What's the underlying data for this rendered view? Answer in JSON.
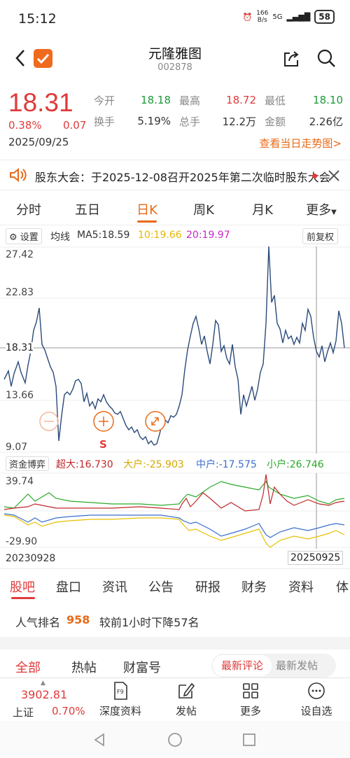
{
  "status": {
    "time": "15:12",
    "net_speed": "166",
    "net_unit": "B/s",
    "signal": "5G",
    "battery": "58"
  },
  "nav": {
    "title": "元隆雅图",
    "code": "002878"
  },
  "quote": {
    "price": "18.31",
    "pct": "0.38%",
    "change": "0.07",
    "date": "2025/09/25",
    "stats": [
      {
        "l1": "今开",
        "v1": "18.18",
        "l2": "最高",
        "v2": "18.72",
        "l3": "最低",
        "v3": "18.10"
      },
      {
        "l1": "换手",
        "v1": "5.19%",
        "l2": "总手",
        "v2": "12.2万",
        "l3": "金额",
        "v3": "2.26亿"
      }
    ],
    "trend_link": "查看当日走势图>"
  },
  "notice": {
    "text": "股东大会：于2025-12-08召开2025年第二次临时股东大会"
  },
  "period_tabs": [
    "分时",
    "五日",
    "日K",
    "周K",
    "月K",
    "更多"
  ],
  "chart_toolbar": {
    "settings": "设置",
    "ma_label": "均线",
    "ma5": "MA5:18.59",
    "ma10": "10:19.66",
    "ma20": "20:19.97",
    "restore": "前复权"
  },
  "kline": {
    "y_labels": [
      "27.42",
      "22.83",
      "18.31",
      "13.66",
      "9.07"
    ],
    "signal_label": "S",
    "colors": {
      "price": "#2b4a7a",
      "up": "#e03a3a",
      "accent": "#e86a18"
    }
  },
  "fund_flow": {
    "button": "资金博弈",
    "super_large": "超大:16.730",
    "large": "大户:-25.903",
    "medium": "中户:-17.575",
    "small": "小户:26.746",
    "y_top": "39.74",
    "y_bottom": "-29.90",
    "colors": {
      "super_large": "#c0282a",
      "large": "#e6c000",
      "medium": "#3a6ecc",
      "small": "#2aaa2a"
    }
  },
  "range": {
    "start": "20230928",
    "end": "20250925"
  },
  "section_tabs": [
    "股吧",
    "盘口",
    "资讯",
    "公告",
    "研报",
    "财务",
    "资料",
    "体"
  ],
  "popularity": {
    "label": "人气排名",
    "rank": "958",
    "desc": "较前1小时下降57名"
  },
  "filters": {
    "items": [
      "全部",
      "热帖",
      "财富号"
    ],
    "sort_active": "最新评论",
    "sort_other": "最新发帖"
  },
  "bottom_bar": {
    "index_value": "3902.81",
    "index_name": "上证",
    "index_pct": "0.70%",
    "items": [
      "深度资料",
      "发帖",
      "更多",
      "设自选"
    ],
    "f9": "F9"
  }
}
